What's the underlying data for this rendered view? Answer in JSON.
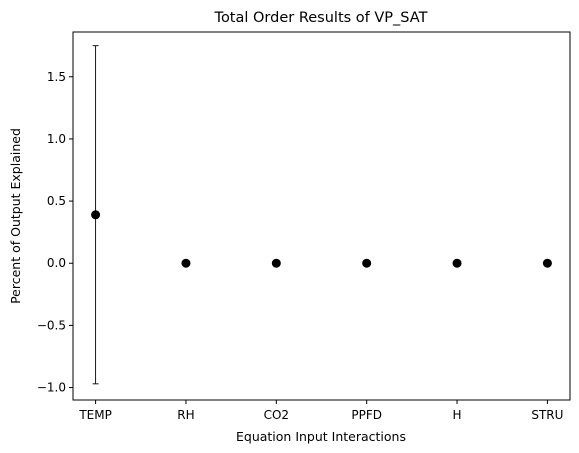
{
  "chart_data": {
    "type": "scatter",
    "title": "Total Order Results of VP_SAT",
    "xlabel": "Equation Input Interactions",
    "ylabel": "Percent of Output Explained",
    "categories": [
      "TEMP",
      "RH",
      "CO2",
      "PPFD",
      "H",
      "STRU"
    ],
    "values": [
      0.39,
      0.0,
      0.0,
      0.0,
      0.0,
      0.0
    ],
    "error_low": [
      -0.97,
      0.0,
      0.0,
      0.0,
      0.0,
      0.0
    ],
    "error_high": [
      1.75,
      0.0,
      0.0,
      0.0,
      0.0,
      0.0
    ],
    "ylim": [
      -1.1,
      1.86
    ],
    "yticks": [
      -1.0,
      -0.5,
      0.0,
      0.5,
      1.0,
      1.5
    ],
    "ytick_labels": [
      "−1.0",
      "−0.5",
      "0.0",
      "0.5",
      "1.0",
      "1.5"
    ],
    "marker_color": "#000000",
    "grid": false,
    "legend": false
  }
}
